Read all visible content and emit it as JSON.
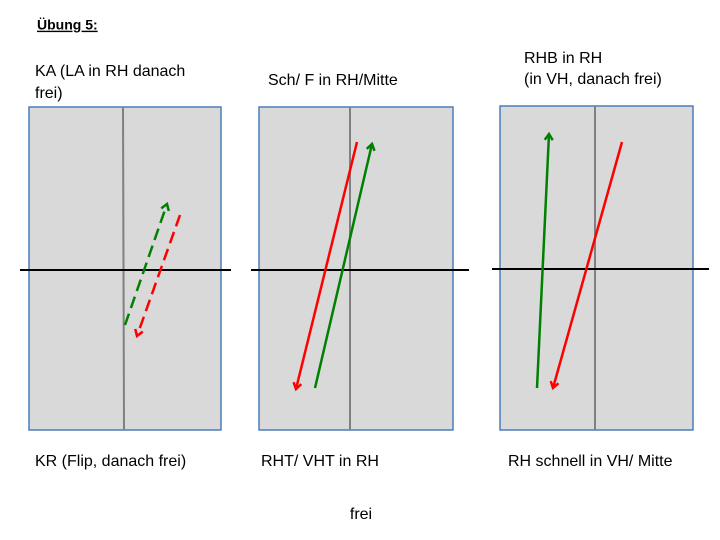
{
  "header": {
    "title": "Übung 5:"
  },
  "panels": [
    {
      "top_label": [
        "KA (LA in RH danach",
        "frei)"
      ],
      "bottom_label": "KR (Flip, danach frei)"
    },
    {
      "top_label": [
        "Sch/ F in RH/Mitte"
      ],
      "bottom_label": "RHT/ VHT in RH"
    },
    {
      "top_label": [
        "RHB in RH",
        "(in VH, danach frei)"
      ],
      "bottom_label": "RH schnell in VH/ Mitte"
    }
  ],
  "footer": "frei"
}
